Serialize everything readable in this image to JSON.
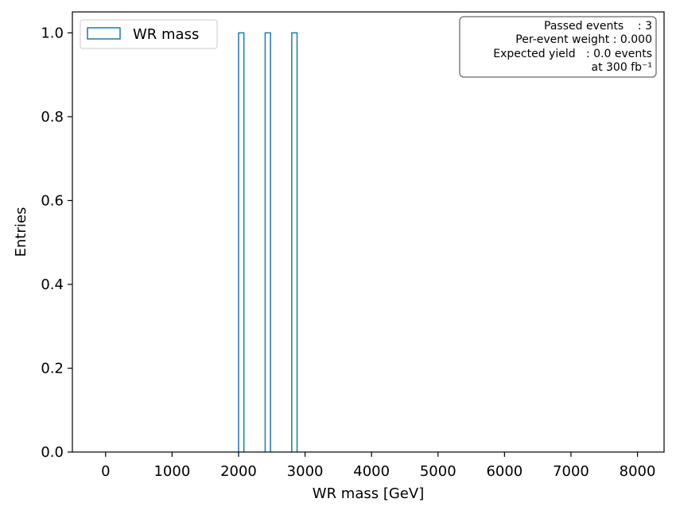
{
  "chart_data": {
    "type": "bar",
    "histtype": "step",
    "xlabel": "WR mass [GeV]",
    "ylabel": "Entries",
    "xlim": [
      -500,
      8400
    ],
    "ylim": [
      0,
      1.05
    ],
    "xticks": [
      0,
      1000,
      2000,
      3000,
      4000,
      5000,
      6000,
      7000,
      8000
    ],
    "yticks": [
      0.0,
      0.2,
      0.4,
      0.6,
      0.8,
      1.0
    ],
    "xtick_labels": [
      "0",
      "1000",
      "2000",
      "3000",
      "4000",
      "5000",
      "6000",
      "7000",
      "8000"
    ],
    "ytick_labels": [
      "0.0",
      "0.2",
      "0.4",
      "0.6",
      "0.8",
      "1.0"
    ],
    "color": "#1f77b4",
    "series": [
      {
        "name": "WR mass",
        "bins": [
          [
            2000,
            2080
          ],
          [
            2400,
            2480
          ],
          [
            2800,
            2880
          ]
        ],
        "values": [
          1,
          1,
          1
        ]
      }
    ],
    "legend": {
      "placement": "upper-left",
      "entries": [
        "WR mass"
      ]
    },
    "annotation": {
      "placement": "upper-right",
      "lines": [
        "Passed events    : 3",
        "Per-event weight : 0.000",
        "Expected yield   : 0.0 events",
        "at 300 fb⁻¹"
      ]
    },
    "grid": false
  }
}
